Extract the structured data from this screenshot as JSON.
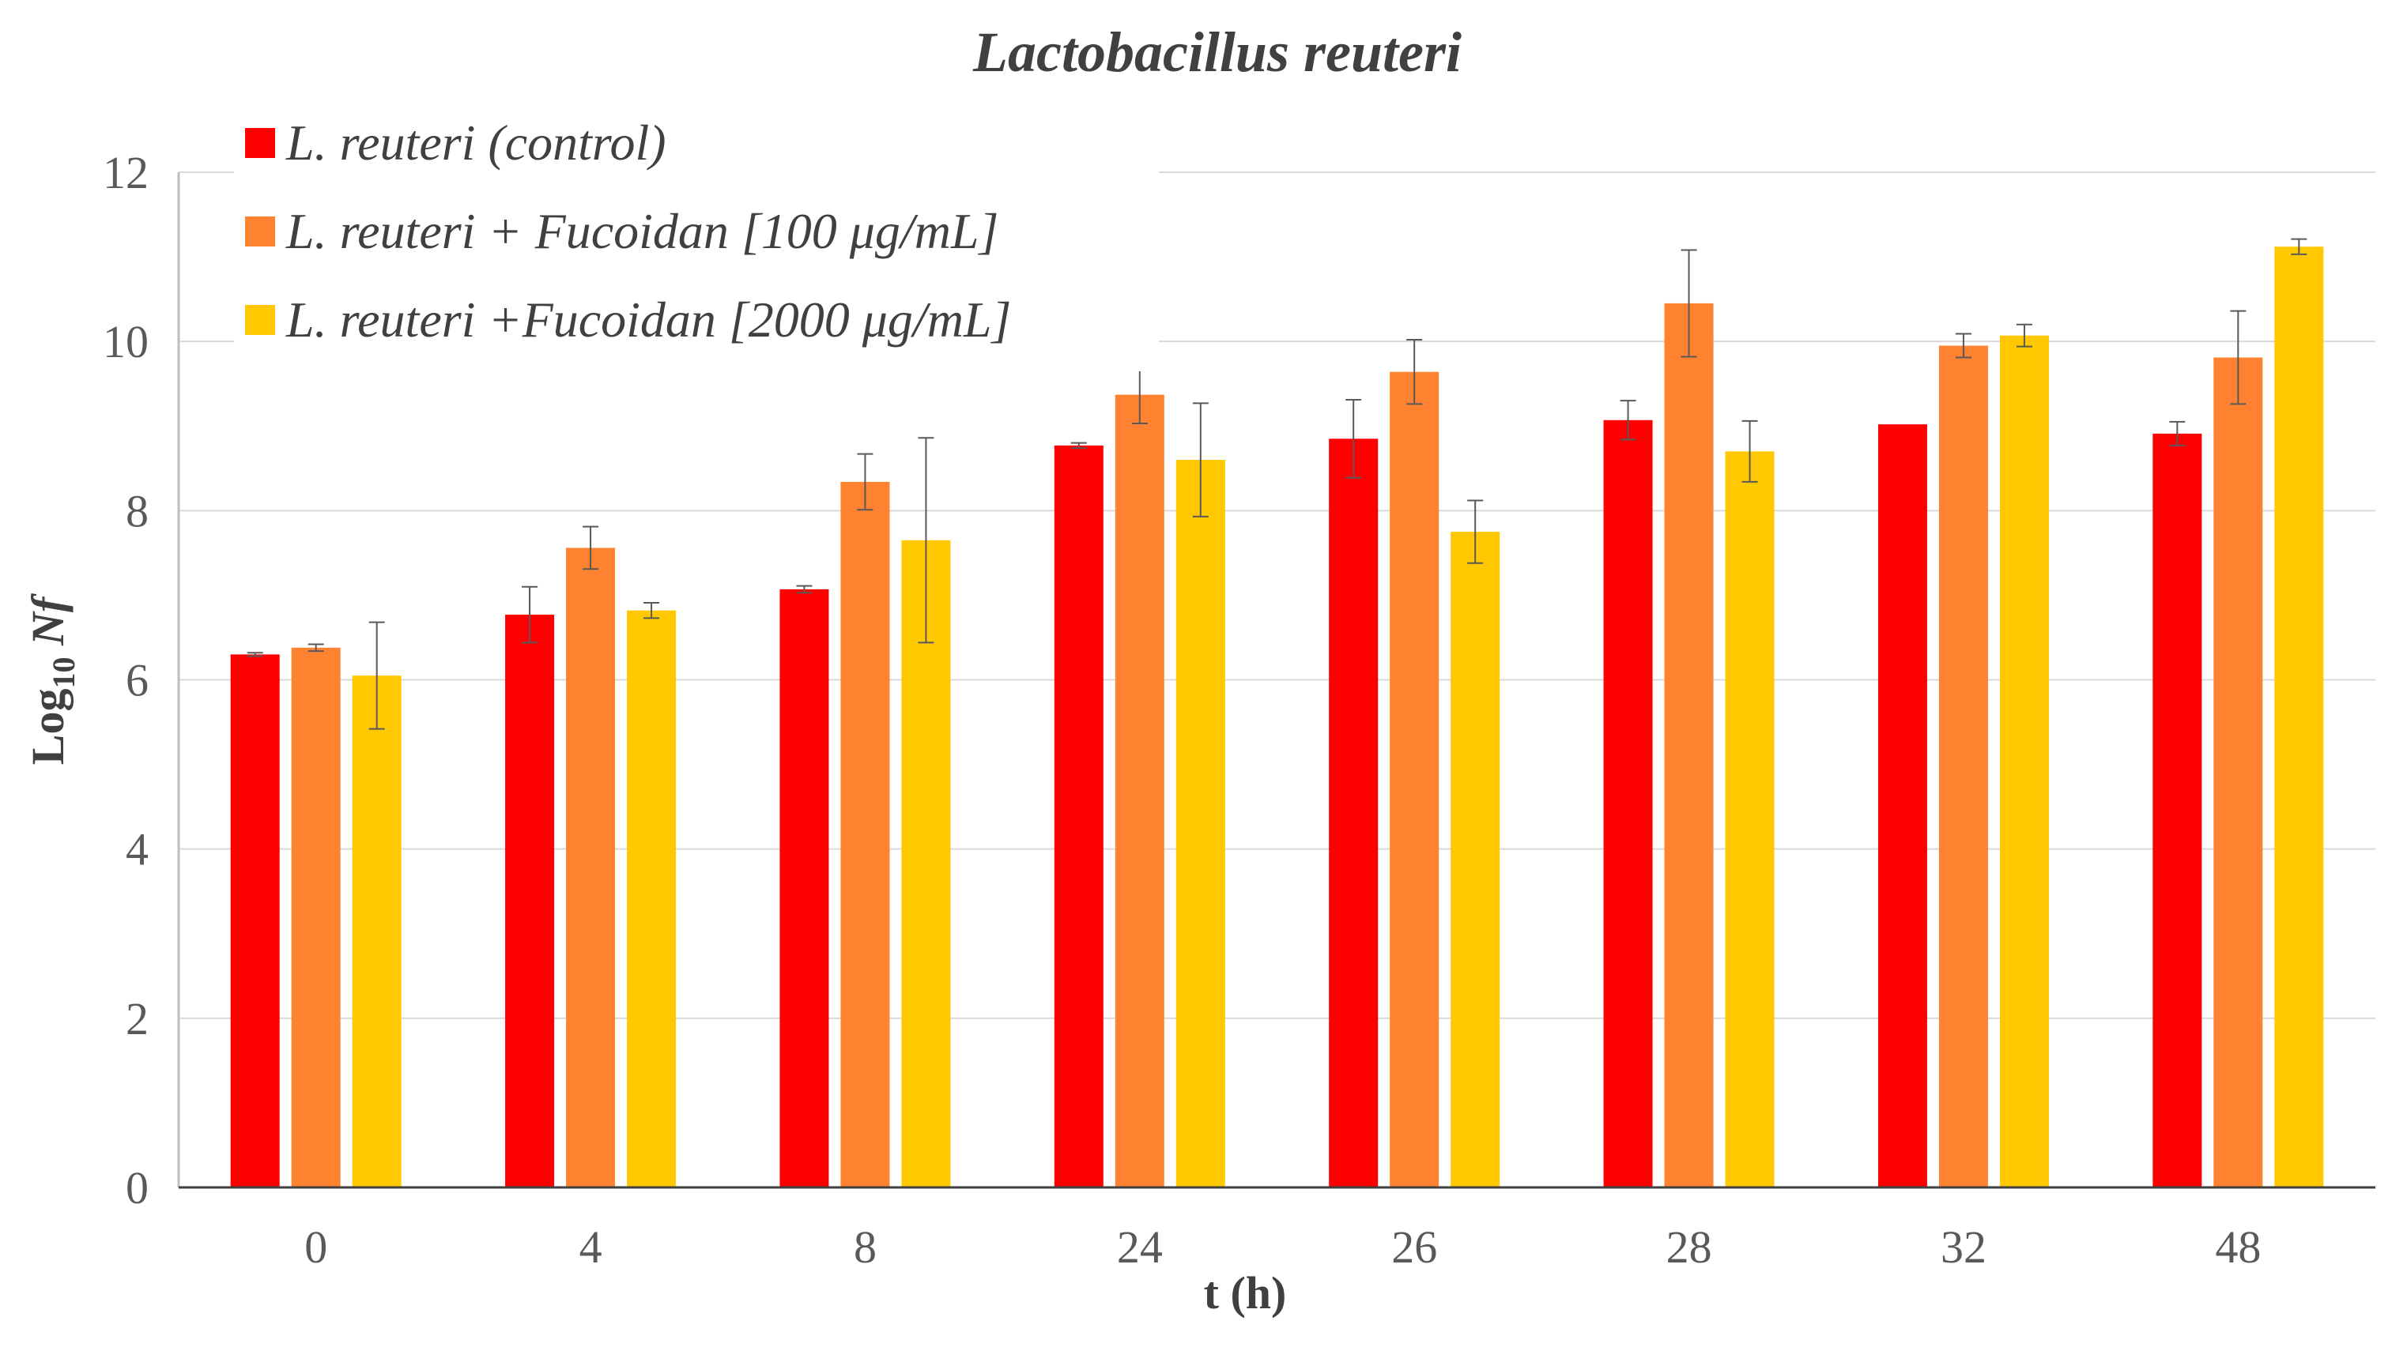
{
  "chart_data": {
    "type": "bar",
    "title": "Lactobacillus reuteri",
    "xlabel": "t (h)",
    "ylabel": {
      "prefix": "Log",
      "subscript": "10",
      "suffix": " Nf"
    },
    "ylim": [
      0,
      12
    ],
    "yticks": [
      0,
      2,
      4,
      6,
      8,
      10,
      12
    ],
    "categories": [
      "0",
      "4",
      "8",
      "24",
      "26",
      "28",
      "32",
      "48"
    ],
    "legend_position": "top-left",
    "gridlines": true,
    "series": [
      {
        "name": "L. reuteri (control)",
        "color": "#ff0000",
        "values": [
          6.3,
          6.77,
          7.07,
          8.77,
          8.85,
          9.07,
          9.02,
          8.91
        ],
        "errors": [
          0.02,
          0.33,
          0.04,
          0.03,
          0.46,
          0.23,
          0.0,
          0.14
        ]
      },
      {
        "name": "L. reuteri + Fucoidan [100 μg/mL]",
        "color": "#ff8230",
        "values": [
          6.38,
          7.56,
          8.34,
          9.37,
          9.64,
          10.45,
          9.95,
          9.81
        ],
        "errors": [
          0.04,
          0.25,
          0.33,
          0.34,
          0.38,
          0.63,
          0.14,
          0.55
        ]
      },
      {
        "name": "L. reuteri +Fucoidan [2000 μg/mL]",
        "color": "#ffc800",
        "values": [
          6.05,
          6.82,
          7.65,
          8.6,
          7.75,
          8.7,
          10.07,
          11.12
        ],
        "errors": [
          0.63,
          0.09,
          1.21,
          0.67,
          0.37,
          0.36,
          0.13,
          0.09
        ]
      }
    ]
  }
}
